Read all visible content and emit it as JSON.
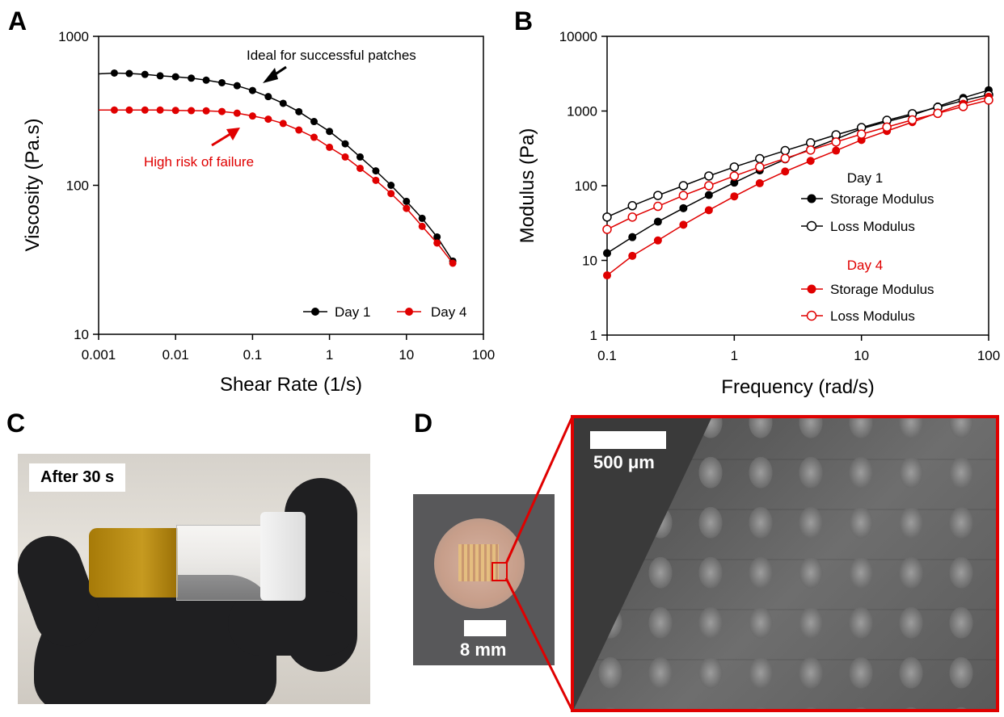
{
  "panels": {
    "a": "A",
    "b": "B",
    "c": "C",
    "d": "D"
  },
  "chart_data": [
    {
      "type": "line",
      "panel": "A",
      "xlabel": "Shear Rate (1/s)",
      "ylabel": "Viscosity (Pa.s)",
      "xscale": "log",
      "yscale": "log",
      "xlim": [
        0.001,
        100
      ],
      "ylim": [
        10,
        1000
      ],
      "xticks": [
        "0.001",
        "0.01",
        "0.1",
        "1",
        "10",
        "100"
      ],
      "yticks": [
        "10",
        "100",
        "1000"
      ],
      "grid": false,
      "legend_position": "bottom-right",
      "annotations": [
        {
          "text": "Ideal for successful patches",
          "color": "#000000"
        },
        {
          "text": "High risk of failure",
          "color": "#e00000"
        }
      ],
      "series": [
        {
          "name": "Day 1",
          "color": "#000000",
          "marker": "filled",
          "x": [
            0.0016,
            0.0025,
            0.004,
            0.0063,
            0.01,
            0.016,
            0.025,
            0.04,
            0.063,
            0.1,
            0.16,
            0.25,
            0.4,
            0.63,
            1,
            1.6,
            2.5,
            4,
            6.3,
            10,
            16,
            25,
            40
          ],
          "y": [
            567,
            563,
            555,
            543,
            535,
            524,
            508,
            488,
            466,
            433,
            394,
            355,
            312,
            268,
            230,
            190,
            155,
            125,
            100,
            78,
            60,
            45,
            31
          ],
          "line_start": [
            0.001,
            560
          ]
        },
        {
          "name": "Day 4",
          "color": "#e00000",
          "marker": "filled",
          "x": [
            0.0016,
            0.0025,
            0.004,
            0.0063,
            0.01,
            0.016,
            0.025,
            0.04,
            0.063,
            0.1,
            0.16,
            0.25,
            0.4,
            0.63,
            1,
            1.6,
            2.5,
            4,
            6.3,
            10,
            16,
            25,
            40
          ],
          "y": [
            320,
            320,
            320,
            320,
            318,
            317,
            316,
            313,
            305,
            292,
            278,
            260,
            235,
            210,
            180,
            155,
            130,
            108,
            88,
            70,
            53,
            41,
            30
          ],
          "line_start": [
            0.001,
            320
          ]
        }
      ]
    },
    {
      "type": "line",
      "panel": "B",
      "xlabel": "Frequency (rad/s)",
      "ylabel": "Modulus (Pa)",
      "xscale": "log",
      "yscale": "log",
      "xlim": [
        0.1,
        100
      ],
      "ylim": [
        1,
        10000
      ],
      "xticks": [
        "0.1",
        "1",
        "10",
        "100"
      ],
      "yticks": [
        "1",
        "10",
        "100",
        "1000",
        "10000"
      ],
      "grid": false,
      "legend_position": "center-right",
      "legend_groups": [
        {
          "title": "Day 1",
          "color": "#000000"
        },
        {
          "title": "Day 4",
          "color": "#e00000"
        }
      ],
      "series": [
        {
          "name": "Storage Modulus",
          "group": "Day 1",
          "color": "#000000",
          "marker": "filled",
          "x": [
            0.1,
            0.158,
            0.251,
            0.398,
            0.631,
            1,
            1.585,
            2.512,
            3.981,
            6.31,
            10,
            15.85,
            25.12,
            39.81,
            63.1,
            100
          ],
          "y": [
            12.5,
            20.5,
            33,
            50,
            75,
            110,
            160,
            225,
            310,
            420,
            580,
            720,
            880,
            1150,
            1500,
            1900
          ]
        },
        {
          "name": "Loss Modulus",
          "group": "Day 1",
          "color": "#000000",
          "marker": "open",
          "x": [
            0.1,
            0.158,
            0.251,
            0.398,
            0.631,
            1,
            1.585,
            2.512,
            3.981,
            6.31,
            10,
            15.85,
            25.12,
            39.81,
            63.1,
            100
          ],
          "y": [
            38,
            54,
            74,
            100,
            135,
            178,
            230,
            295,
            375,
            480,
            600,
            750,
            920,
            1120,
            1380,
            1650
          ]
        },
        {
          "name": "Storage Modulus",
          "group": "Day 4",
          "color": "#e00000",
          "marker": "filled",
          "x": [
            0.1,
            0.158,
            0.251,
            0.398,
            0.631,
            1,
            1.585,
            2.512,
            3.981,
            6.31,
            10,
            15.85,
            25.12,
            39.81,
            63.1,
            100
          ],
          "y": [
            6.3,
            11.5,
            18.5,
            30,
            47,
            72,
            108,
            155,
            215,
            295,
            410,
            540,
            710,
            950,
            1250,
            1550
          ]
        },
        {
          "name": "Loss Modulus",
          "group": "Day 4",
          "color": "#e00000",
          "marker": "open",
          "x": [
            0.1,
            0.158,
            0.251,
            0.398,
            0.631,
            1,
            1.585,
            2.512,
            3.981,
            6.31,
            10,
            15.85,
            25.12,
            39.81,
            63.1,
            100
          ],
          "y": [
            26,
            38,
            53,
            74,
            100,
            135,
            178,
            232,
            300,
            385,
            490,
            610,
            760,
            930,
            1150,
            1400
          ]
        }
      ]
    }
  ],
  "photos": {
    "c_label": "After 30 s",
    "d_scale_small": "8 mm",
    "d_scale_large": "500 μm"
  }
}
